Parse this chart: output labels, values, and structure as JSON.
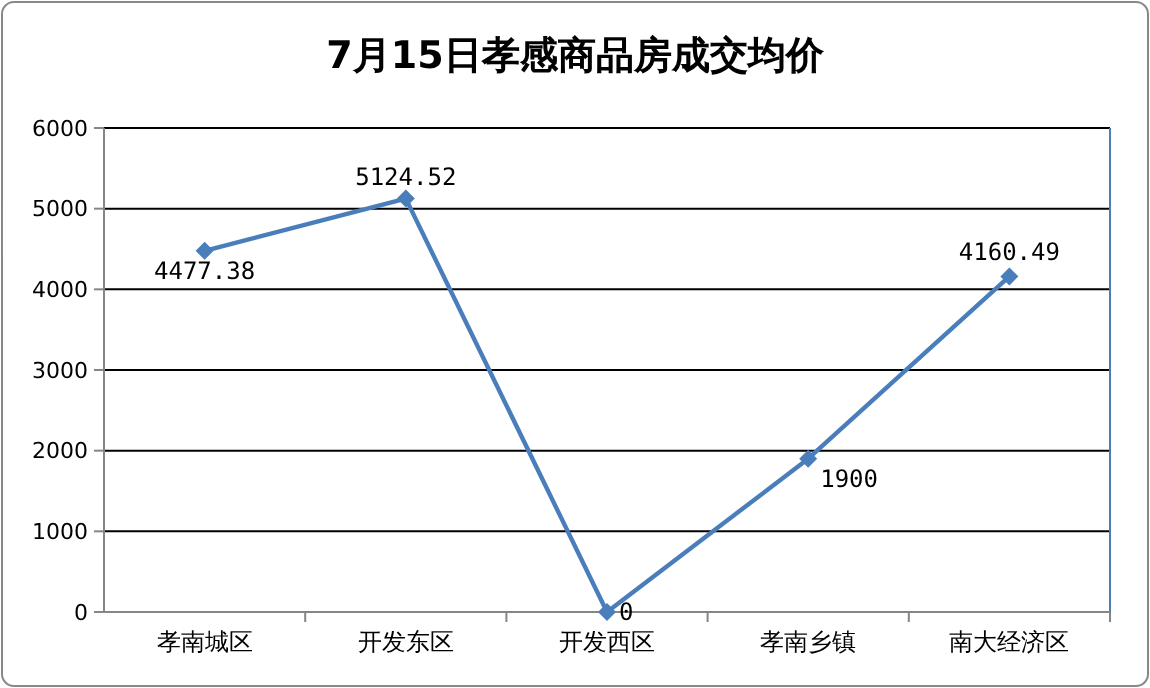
{
  "chart_data": {
    "type": "line",
    "title": "7月15日孝感商品房成交均价",
    "categories": [
      "孝南城区",
      "开发东区",
      "开发西区",
      "孝南乡镇",
      "南大经济区"
    ],
    "series": [
      {
        "color": "#4a7ebb",
        "values": [
          4477.38,
          5124.52,
          0,
          1900,
          4160.49
        ]
      }
    ],
    "ylim": [
      0,
      6000
    ],
    "yticks": [
      0,
      1000,
      2000,
      3000,
      4000,
      5000,
      6000
    ],
    "grid": "y",
    "marker": "diamond",
    "line_style": "solid",
    "data_labels": true
  }
}
